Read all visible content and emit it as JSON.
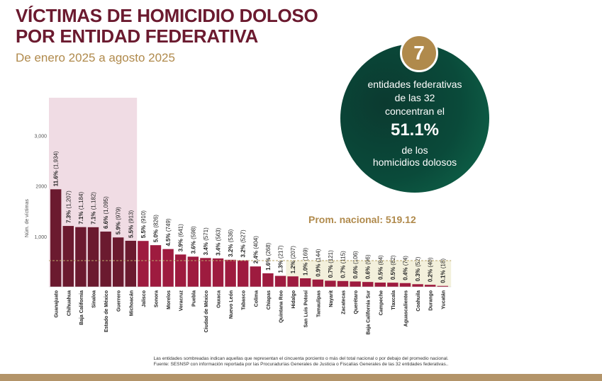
{
  "title_line1": "VÍCTIMAS DE HOMICIDIO DOLOSO",
  "title_line2": "POR ENTIDAD FEDERATIVA",
  "subtitle": "De enero 2025 a agosto 2025",
  "callout": {
    "number": "7",
    "line1": "entidades federativas",
    "line2": "de las 32",
    "line3": "concentran el",
    "percent": "51.1%",
    "line4": "de los",
    "line5": "homicidios dolosos"
  },
  "average_label": "Prom. nacional: 519.12",
  "footnote1": "Las entidades sombreadas indican aquellas que representan el cincuenta porciento o más del total nacional o por debajo del promedio nacional.",
  "footnote2": "Fuente: SESNSP con información reportada por las Procuradurías Generales de Justicia o Fiscalías Generales de las 32 entidades federativas..",
  "colors": {
    "bar_top": "#6b1a2f",
    "bar_rest": "#9e1b3f",
    "highlight_top": "#f0dce4",
    "highlight_bottom": "#f3f0dc",
    "accent": "#b08a4c"
  },
  "chart_data": {
    "type": "bar",
    "ylabel": "Núm. de víctimas",
    "ylim": [
      0,
      3750
    ],
    "yticks": [
      {
        "value": 1000,
        "label": "1,000"
      },
      {
        "value": 2000,
        "label": "2000"
      },
      {
        "value": 3000,
        "label": "3,000"
      }
    ],
    "average": 519.12,
    "highlight_top_count": 7,
    "highlight_bottom_from": 19,
    "categories": [
      "Guanajuato",
      "Chihuahua",
      "Baja California",
      "Sinaloa",
      "Estado de México",
      "Guerrero",
      "Michoacán",
      "Jalisco",
      "Sonora",
      "Morelos",
      "Veracruz",
      "Puebla",
      "Ciudad de México",
      "Oaxaca",
      "Nuevo León",
      "Tabasco",
      "Colima",
      "Chiapas",
      "Quintana Roo",
      "Hidalgo",
      "San Luis Potosí",
      "Tamaulipas",
      "Nayarit",
      "Zacatecas",
      "Querétaro",
      "Baja California Sur",
      "Campeche",
      "Tlaxcala",
      "Aguascalientes",
      "Coahuila",
      "Durango",
      "Yucatán"
    ],
    "values": [
      1934,
      1207,
      1184,
      1182,
      1095,
      979,
      913,
      910,
      826,
      749,
      641,
      598,
      571,
      563,
      536,
      527,
      404,
      268,
      217,
      207,
      169,
      144,
      121,
      115,
      106,
      96,
      84,
      82,
      74,
      52,
      40,
      18
    ],
    "percent_labels": [
      "11.6%",
      "7.3%",
      "7.1%",
      "7.1%",
      "6.6%",
      "5.9%",
      "5.5%",
      "5.5%",
      "5.0%",
      "4.5%",
      "3.9%",
      "3.6%",
      "3.4%",
      "3.4%",
      "3.2%",
      "3.2%",
      "2.4%",
      "1.6%",
      "1.3%",
      "1.2%",
      "1.0%",
      "0.9%",
      "0.7%",
      "0.7%",
      "0.6%",
      "0.6%",
      "0.5%",
      "0.5%",
      "0.4%",
      "0.3%",
      "0.2%",
      "0.1%"
    ],
    "count_labels": [
      "(1,934)",
      "(1,207)",
      "(1,184)",
      "(1,182)",
      "(1,095)",
      "(979)",
      "(913)",
      "(910)",
      "(826)",
      "(749)",
      "(641)",
      "(598)",
      "(571)",
      "(563)",
      "(536)",
      "(527)",
      "(404)",
      "(268)",
      "(217)",
      "(207)",
      "(169)",
      "(144)",
      "(121)",
      "(115)",
      "(106)",
      "(96)",
      "(84)",
      "(82)",
      "(74)",
      "(52)",
      "(40)",
      "(18)"
    ]
  }
}
